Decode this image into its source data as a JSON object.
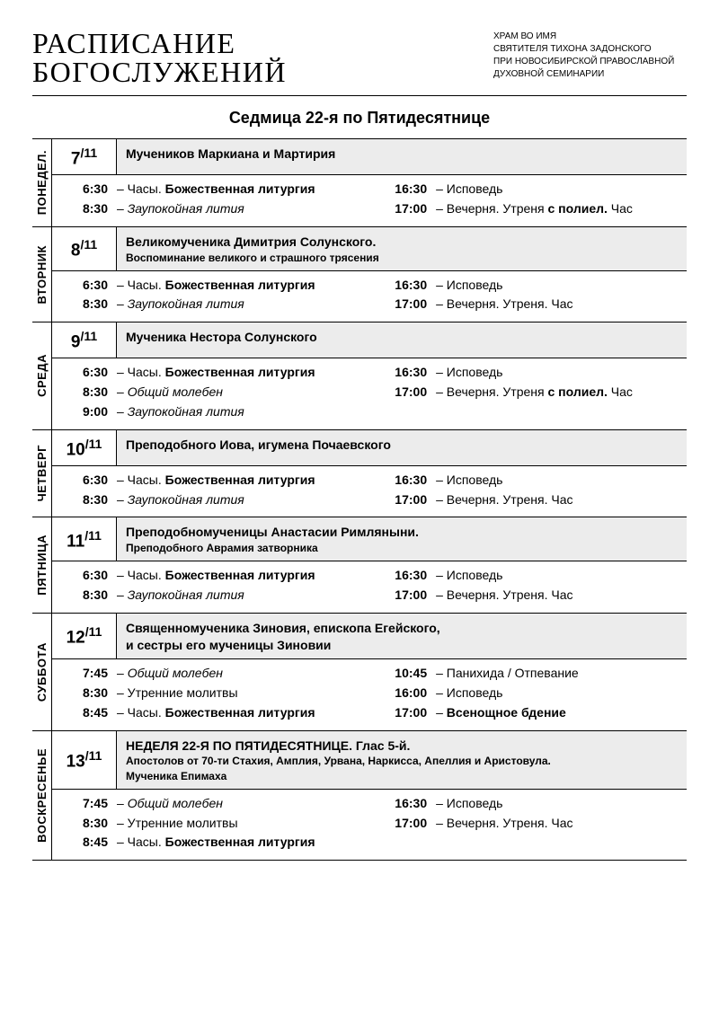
{
  "header": {
    "main": "РАСПИСАНИЕ БОГОСЛУЖЕНИЙ",
    "sub1": "ХРАМ ВО ИМЯ",
    "sub2": "СВЯТИТЕЛЯ ТИХОНА ЗАДОНСКОГО",
    "sub3": "ПРИ НОВОСИБИРСКОЙ ПРАВОСЛАВНОЙ",
    "sub4": "ДУХОВНОЙ СЕМИНАРИИ"
  },
  "week_title": "Седмица 22-я по Пятидесятнице",
  "days": [
    {
      "label": "ПОНЕДЕЛ.",
      "day": "7",
      "month": "/11",
      "title_main": "Мучеников Маркиана и Мартирия",
      "title_sub": "",
      "left": [
        {
          "t": "6:30",
          "parts": [
            {
              "txt": "– Часы. ",
              "cls": ""
            },
            {
              "txt": "Божественная литургия",
              "cls": "b"
            }
          ]
        },
        {
          "t": "8:30",
          "parts": [
            {
              "txt": "– ",
              "cls": ""
            },
            {
              "txt": "Заупокойная лития",
              "cls": "i"
            }
          ]
        }
      ],
      "right": [
        {
          "t": "16:30",
          "parts": [
            {
              "txt": "– Исповедь",
              "cls": ""
            }
          ]
        },
        {
          "t": "17:00",
          "parts": [
            {
              "txt": "– Вечерня. Утреня ",
              "cls": ""
            },
            {
              "txt": "с полиел.",
              "cls": "b"
            },
            {
              "txt": " Час",
              "cls": ""
            }
          ]
        }
      ]
    },
    {
      "label": "ВТОРНИК",
      "day": "8",
      "month": "/11",
      "title_main": "Великомученика Димитрия Солунского.",
      "title_sub": "Воспоминание великого и страшного трясения",
      "left": [
        {
          "t": "6:30",
          "parts": [
            {
              "txt": "– Часы. ",
              "cls": ""
            },
            {
              "txt": "Божественная литургия",
              "cls": "b"
            }
          ]
        },
        {
          "t": "8:30",
          "parts": [
            {
              "txt": "– ",
              "cls": ""
            },
            {
              "txt": "Заупокойная лития",
              "cls": "i"
            }
          ]
        }
      ],
      "right": [
        {
          "t": "16:30",
          "parts": [
            {
              "txt": "– Исповедь",
              "cls": ""
            }
          ]
        },
        {
          "t": "17:00",
          "parts": [
            {
              "txt": "– Вечерня. Утреня. Час",
              "cls": ""
            }
          ]
        }
      ]
    },
    {
      "label": "СРЕДА",
      "day": "9",
      "month": "/11",
      "title_main": "Мученика Нестора Солунского",
      "title_sub": "",
      "left": [
        {
          "t": "6:30",
          "parts": [
            {
              "txt": "– Часы. ",
              "cls": ""
            },
            {
              "txt": "Божественная литургия",
              "cls": "b"
            }
          ]
        },
        {
          "t": "8:30",
          "parts": [
            {
              "txt": "– ",
              "cls": ""
            },
            {
              "txt": "Общий молебен",
              "cls": "i"
            }
          ]
        },
        {
          "t": "9:00",
          "parts": [
            {
              "txt": "– ",
              "cls": ""
            },
            {
              "txt": "Заупокойная лития",
              "cls": "i"
            }
          ]
        }
      ],
      "right": [
        {
          "t": "16:30",
          "parts": [
            {
              "txt": "– Исповедь",
              "cls": ""
            }
          ]
        },
        {
          "t": "17:00",
          "parts": [
            {
              "txt": "– Вечерня. Утреня ",
              "cls": ""
            },
            {
              "txt": "с полиел.",
              "cls": "b"
            },
            {
              "txt": " Час",
              "cls": ""
            }
          ]
        }
      ]
    },
    {
      "label": "ЧЕТВЕРГ",
      "day": "10",
      "month": "/11",
      "title_main": "Преподобного Иова, игумена Почаевского",
      "title_sub": "",
      "left": [
        {
          "t": "6:30",
          "parts": [
            {
              "txt": "– Часы. ",
              "cls": ""
            },
            {
              "txt": "Божественная литургия",
              "cls": "b"
            }
          ]
        },
        {
          "t": "8:30",
          "parts": [
            {
              "txt": "– ",
              "cls": ""
            },
            {
              "txt": "Заупокойная лития",
              "cls": "i"
            }
          ]
        }
      ],
      "right": [
        {
          "t": "16:30",
          "parts": [
            {
              "txt": "– Исповедь",
              "cls": ""
            }
          ]
        },
        {
          "t": "17:00",
          "parts": [
            {
              "txt": "– Вечерня. Утреня. Час",
              "cls": ""
            }
          ]
        }
      ]
    },
    {
      "label": "ПЯТНИЦА",
      "day": "11",
      "month": "/11",
      "title_main": "Преподобномученицы Анастасии Римляныни.",
      "title_sub": "Преподобного Аврамия затворника",
      "left": [
        {
          "t": "6:30",
          "parts": [
            {
              "txt": "– Часы. ",
              "cls": ""
            },
            {
              "txt": "Божественная литургия",
              "cls": "b"
            }
          ]
        },
        {
          "t": "8:30",
          "parts": [
            {
              "txt": "– ",
              "cls": ""
            },
            {
              "txt": "Заупокойная лития",
              "cls": "i"
            }
          ]
        }
      ],
      "right": [
        {
          "t": "16:30",
          "parts": [
            {
              "txt": "– Исповедь",
              "cls": ""
            }
          ]
        },
        {
          "t": "17:00",
          "parts": [
            {
              "txt": "– Вечерня. Утреня. Час",
              "cls": ""
            }
          ]
        }
      ]
    },
    {
      "label": "СУББОТА",
      "day": "12",
      "month": "/11",
      "title_main": "Священномученика Зиновия, епископа Егейского,\nи сестры его мученицы Зиновии",
      "title_sub": "",
      "left": [
        {
          "t": "7:45",
          "parts": [
            {
              "txt": "– ",
              "cls": ""
            },
            {
              "txt": "Общий молебен",
              "cls": "i"
            }
          ]
        },
        {
          "t": "8:30",
          "parts": [
            {
              "txt": "– Утренние молитвы",
              "cls": ""
            }
          ]
        },
        {
          "t": "8:45",
          "parts": [
            {
              "txt": "– Часы. ",
              "cls": ""
            },
            {
              "txt": "Божественная литургия",
              "cls": "b"
            }
          ]
        }
      ],
      "right": [
        {
          "t": "10:45",
          "parts": [
            {
              "txt": "– Панихида / Отпевание",
              "cls": ""
            }
          ]
        },
        {
          "t": "16:00",
          "parts": [
            {
              "txt": "– Исповедь",
              "cls": ""
            }
          ]
        },
        {
          "t": "17:00",
          "parts": [
            {
              "txt": "– ",
              "cls": ""
            },
            {
              "txt": "Всенощное бдение",
              "cls": "b"
            }
          ]
        }
      ]
    },
    {
      "label": "ВОСКРЕСЕНЬЕ",
      "day": "13",
      "month": "/11",
      "title_main": "НЕДЕЛЯ 22-Я ПО ПЯТИДЕСЯТНИЦЕ. Глас 5-й.",
      "title_sub": "Апостолов от 70-ти Стахия, Амплия, Урвана, Наркисса, Апеллия и Аристовула.\nМученика Епимаха",
      "left": [
        {
          "t": "7:45",
          "parts": [
            {
              "txt": "– ",
              "cls": ""
            },
            {
              "txt": "Общий молебен",
              "cls": "i"
            }
          ]
        },
        {
          "t": "8:30",
          "parts": [
            {
              "txt": "– Утренние молитвы",
              "cls": ""
            }
          ]
        },
        {
          "t": "8:45",
          "parts": [
            {
              "txt": "– Часы. ",
              "cls": ""
            },
            {
              "txt": "Божественная литургия",
              "cls": "b"
            }
          ]
        }
      ],
      "right": [
        {
          "t": "16:30",
          "parts": [
            {
              "txt": "– Исповедь",
              "cls": ""
            }
          ]
        },
        {
          "t": "17:00",
          "parts": [
            {
              "txt": "– Вечерня. Утреня. Час",
              "cls": ""
            }
          ]
        }
      ]
    }
  ]
}
